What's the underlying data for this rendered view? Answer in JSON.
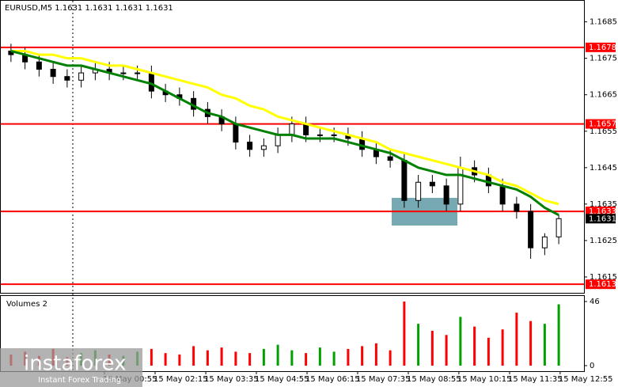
{
  "chart_data": {
    "type": "candlestick",
    "title": "EURUSD,M5  1.1631 1.1631 1.1631 1.1631",
    "open": [
      1.1677,
      1.1676,
      1.1674,
      1.1672,
      1.167,
      1.1669,
      1.1671,
      1.1672,
      1.1671,
      1.1671,
      1.1671,
      1.1666,
      1.1665,
      1.1664,
      1.1661,
      1.1659,
      1.1657,
      1.1652,
      1.165,
      1.1651,
      1.1654,
      1.1657,
      1.1654,
      1.1654,
      1.1654,
      1.1653,
      1.165,
      1.1648,
      1.1647,
      1.1636,
      1.1641,
      1.164,
      1.1635,
      1.1645,
      1.1643,
      1.164,
      1.1635,
      1.1633,
      1.1623,
      1.1626
    ],
    "high": [
      1.1679,
      1.1678,
      1.1676,
      1.1674,
      1.1672,
      1.1673,
      1.1674,
      1.1674,
      1.1673,
      1.1673,
      1.1673,
      1.1668,
      1.1667,
      1.1666,
      1.1663,
      1.1661,
      1.1659,
      1.1654,
      1.1653,
      1.1656,
      1.1659,
      1.1659,
      1.1656,
      1.1656,
      1.1656,
      1.1655,
      1.1652,
      1.165,
      1.1649,
      1.1643,
      1.1643,
      1.1642,
      1.1648,
      1.1647,
      1.1645,
      1.1642,
      1.1637,
      1.1635,
      1.1627,
      1.1632
    ],
    "low": [
      1.1674,
      1.1672,
      1.167,
      1.1668,
      1.1667,
      1.1667,
      1.1669,
      1.1669,
      1.1669,
      1.1669,
      1.1664,
      1.1663,
      1.1662,
      1.1659,
      1.1657,
      1.1655,
      1.165,
      1.1648,
      1.1648,
      1.1649,
      1.1652,
      1.1652,
      1.1652,
      1.1652,
      1.1651,
      1.1648,
      1.1646,
      1.1645,
      1.1634,
      1.1634,
      1.1638,
      1.1633,
      1.1633,
      1.1641,
      1.1638,
      1.1633,
      1.1631,
      1.162,
      1.1621,
      1.1624
    ],
    "close": [
      1.1676,
      1.1674,
      1.1672,
      1.167,
      1.1669,
      1.1671,
      1.1672,
      1.1671,
      1.1671,
      1.1671,
      1.1666,
      1.1665,
      1.1664,
      1.1661,
      1.1659,
      1.1657,
      1.1652,
      1.165,
      1.1651,
      1.1654,
      1.1657,
      1.1654,
      1.1654,
      1.1654,
      1.1653,
      1.165,
      1.1648,
      1.1647,
      1.1636,
      1.1641,
      1.164,
      1.1635,
      1.1645,
      1.1643,
      1.164,
      1.1635,
      1.1633,
      1.1623,
      1.1626,
      1.1631
    ],
    "up_color": "#ffffff",
    "down_color": "#000000",
    "series": [
      {
        "color": "#ffff00",
        "values": [
          1.1677,
          1.1677,
          1.1676,
          1.1676,
          1.1675,
          1.1675,
          1.1674,
          1.1673,
          1.1673,
          1.1672,
          1.1671,
          1.167,
          1.1669,
          1.1668,
          1.1667,
          1.1665,
          1.1664,
          1.1662,
          1.1661,
          1.1659,
          1.1658,
          1.1657,
          1.1656,
          1.1655,
          1.1654,
          1.1653,
          1.1652,
          1.165,
          1.1649,
          1.1648,
          1.1647,
          1.1646,
          1.1645,
          1.1644,
          1.1643,
          1.1641,
          1.164,
          1.1638,
          1.1636,
          1.1635
        ]
      },
      {
        "color": "#008000",
        "values": [
          1.1677,
          1.1676,
          1.1675,
          1.1674,
          1.1673,
          1.1673,
          1.1672,
          1.1671,
          1.167,
          1.1669,
          1.1668,
          1.1666,
          1.1664,
          1.1662,
          1.166,
          1.1659,
          1.1657,
          1.1656,
          1.1655,
          1.1654,
          1.1654,
          1.1653,
          1.1653,
          1.1653,
          1.1652,
          1.1651,
          1.165,
          1.1649,
          1.1647,
          1.1645,
          1.1644,
          1.1643,
          1.1643,
          1.1642,
          1.1641,
          1.164,
          1.1639,
          1.1637,
          1.1634,
          1.1632
        ]
      }
    ],
    "ylim": [
      1.161,
      1.1691
    ],
    "yticks": [
      1.1615,
      1.1625,
      1.1635,
      1.1645,
      1.1655,
      1.1665,
      1.1675,
      1.1685
    ],
    "levels": [
      1.1678,
      1.1657,
      1.1633,
      1.1613
    ],
    "level_color": "#ff0000",
    "last_price": 1.1631,
    "xlim": [
      -0.5,
      39.5
    ],
    "xticks": [
      {
        "value": 6.65,
        "label": "15 May 00:55"
      },
      {
        "value": 10.26,
        "label": "15 May 02:15"
      },
      {
        "value": 13.87,
        "label": "15 May 03:35"
      },
      {
        "value": 17.47,
        "label": "15 May 04:55"
      },
      {
        "value": 21.08,
        "label": "15 May 06:15"
      },
      {
        "value": 24.68,
        "label": "15 May 07:35"
      },
      {
        "value": 28.29,
        "label": "15 May 08:55"
      },
      {
        "value": 31.89,
        "label": "15 May 10:15"
      },
      {
        "value": 35.5,
        "label": "15 May 11:35"
      },
      {
        "value": 39.1,
        "label": "15 May 12:55"
      }
    ],
    "volume": {
      "title": "Volumes 2",
      "values": [
        8,
        10,
        7,
        12,
        6,
        9,
        11,
        8,
        7,
        10,
        12,
        9,
        8,
        14,
        11,
        13,
        10,
        9,
        12,
        15,
        11,
        9,
        13,
        10,
        12,
        14,
        16,
        11,
        46,
        30,
        25,
        22,
        35,
        28,
        20,
        26,
        38,
        32,
        30,
        44
      ],
      "up_color": "#00a000",
      "down_color": "#ff0000",
      "ylim": [
        0,
        46
      ],
      "yticks": [
        0,
        46
      ]
    },
    "watermark": [
      "instaforex",
      "Instant Forex Trading"
    ]
  }
}
